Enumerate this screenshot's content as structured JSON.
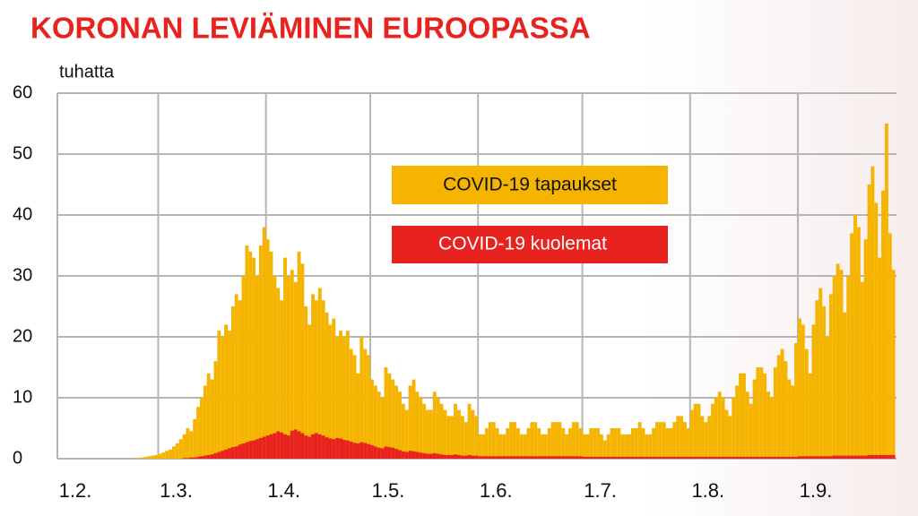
{
  "chart_data": {
    "type": "bar",
    "title": "KORONAN LEVIÄMINEN EUROOPASSA",
    "y_label": "tuhatta",
    "categories": [
      "1.2.",
      null,
      null,
      null,
      null,
      null,
      null,
      null,
      null,
      null,
      null,
      null,
      null,
      null,
      null,
      null,
      null,
      null,
      null,
      null,
      null,
      null,
      null,
      null,
      null,
      null,
      null,
      null,
      null,
      "1.3.",
      null,
      null,
      null,
      null,
      null,
      null,
      null,
      null,
      null,
      null,
      null,
      null,
      null,
      null,
      null,
      null,
      null,
      null,
      null,
      null,
      null,
      null,
      null,
      null,
      null,
      null,
      null,
      null,
      null,
      null,
      "1.4.",
      null,
      null,
      null,
      null,
      null,
      null,
      null,
      null,
      null,
      null,
      null,
      null,
      null,
      null,
      null,
      null,
      null,
      null,
      null,
      null,
      null,
      null,
      null,
      null,
      null,
      null,
      null,
      null,
      null,
      "1.5.",
      null,
      null,
      null,
      null,
      null,
      null,
      null,
      null,
      null,
      null,
      null,
      null,
      null,
      null,
      null,
      null,
      null,
      null,
      null,
      null,
      null,
      null,
      null,
      null,
      null,
      null,
      null,
      null,
      null,
      null,
      "1.6.",
      null,
      null,
      null,
      null,
      null,
      null,
      null,
      null,
      null,
      null,
      null,
      null,
      null,
      null,
      null,
      null,
      null,
      null,
      null,
      null,
      null,
      null,
      null,
      null,
      null,
      null,
      null,
      null,
      null,
      "1.7.",
      null,
      null,
      null,
      null,
      null,
      null,
      null,
      null,
      null,
      null,
      null,
      null,
      null,
      null,
      null,
      null,
      null,
      null,
      null,
      null,
      null,
      null,
      null,
      null,
      null,
      null,
      null,
      null,
      null,
      null,
      "1.8.",
      null,
      null,
      null,
      null,
      null,
      null,
      null,
      null,
      null,
      null,
      null,
      null,
      null,
      null,
      null,
      null,
      null,
      null,
      null,
      null,
      null,
      null,
      null,
      null,
      null,
      null,
      null,
      null,
      null,
      null,
      "1.9.",
      null,
      null,
      null,
      null,
      null,
      null,
      null,
      null,
      null,
      null,
      null,
      null,
      null,
      null,
      null,
      null,
      null,
      null,
      null,
      null,
      null,
      null,
      null,
      null,
      null,
      null,
      null
    ],
    "series": [
      {
        "name": "COVID-19 tapaukset",
        "color": "#f5b400",
        "values": [
          0,
          0,
          0,
          0,
          0,
          0,
          0,
          0,
          0,
          0,
          0,
          0,
          0,
          0,
          0,
          0,
          0,
          0,
          0,
          0,
          0,
          0,
          0.1,
          0.1,
          0.2,
          0.3,
          0.4,
          0.5,
          0.6,
          0.8,
          1.0,
          1.3,
          1.5,
          2.0,
          2.5,
          3.2,
          4.0,
          5.0,
          4.5,
          6.5,
          8.5,
          10,
          12,
          14,
          13,
          16,
          21,
          20,
          22,
          21,
          25,
          27,
          26,
          30,
          35,
          34,
          33,
          30,
          35,
          38,
          36,
          34,
          30,
          28,
          26,
          33,
          30,
          31,
          29,
          34,
          32,
          25,
          22,
          27,
          26,
          28,
          26,
          24,
          22,
          23,
          20,
          21,
          20,
          21,
          18,
          17,
          14,
          20,
          18,
          17,
          13,
          12,
          11,
          10,
          15,
          14,
          13,
          12,
          11,
          9,
          8,
          12,
          13,
          11,
          10,
          9,
          8,
          8,
          11,
          10,
          9,
          8,
          7,
          7,
          9,
          8,
          7,
          6,
          9,
          8,
          7,
          4,
          4,
          5,
          6,
          6,
          5,
          4,
          4,
          5,
          6,
          6,
          5,
          4,
          4,
          5,
          6,
          6,
          5,
          4,
          4,
          5,
          6,
          6,
          6,
          5,
          4,
          5,
          6,
          6,
          5,
          4,
          4,
          5,
          5,
          5,
          4,
          3,
          4,
          5,
          5,
          5,
          4,
          4,
          4,
          5,
          5,
          6,
          5,
          4,
          4,
          5,
          6,
          6,
          6,
          5,
          5,
          6,
          7,
          7,
          6,
          5,
          8,
          9,
          9,
          7,
          6,
          7,
          9,
          10,
          11,
          10,
          8,
          7,
          10,
          12,
          14,
          14,
          11,
          9,
          13,
          15,
          15,
          14,
          11,
          10,
          15,
          17,
          18,
          16,
          13,
          12,
          19,
          23,
          22,
          18,
          14,
          22,
          26,
          28,
          25,
          20,
          27,
          30,
          32,
          31,
          24,
          30,
          37,
          40,
          38,
          29,
          36,
          45,
          48,
          42,
          33,
          44,
          55,
          37,
          31
        ]
      },
      {
        "name": "COVID-19 kuolemat",
        "color": "#e8231f",
        "values": [
          0,
          0,
          0,
          0,
          0,
          0,
          0,
          0,
          0,
          0,
          0,
          0,
          0,
          0,
          0,
          0,
          0,
          0,
          0,
          0,
          0,
          0,
          0,
          0,
          0,
          0,
          0,
          0,
          0,
          0,
          0,
          0,
          0,
          0,
          0,
          0,
          0.1,
          0.1,
          0.2,
          0.2,
          0.3,
          0.4,
          0.5,
          0.6,
          0.7,
          0.9,
          1.1,
          1.3,
          1.5,
          1.7,
          1.9,
          2.0,
          2.3,
          2.5,
          2.7,
          2.9,
          3.0,
          3.2,
          3.4,
          3.6,
          3.8,
          4.0,
          4.2,
          4.5,
          4.3,
          4.0,
          3.8,
          4.6,
          4.8,
          4.5,
          4.2,
          3.8,
          3.6,
          4.0,
          4.2,
          4.0,
          3.8,
          3.5,
          3.3,
          3.2,
          3.4,
          3.3,
          3.1,
          3.0,
          2.8,
          2.6,
          2.5,
          2.7,
          2.6,
          2.4,
          2.2,
          2.0,
          1.8,
          1.7,
          2.0,
          1.9,
          1.8,
          1.6,
          1.4,
          1.2,
          1.1,
          1.3,
          1.2,
          1.1,
          1.0,
          0.9,
          0.8,
          0.8,
          0.9,
          0.8,
          0.7,
          0.6,
          0.6,
          0.6,
          0.7,
          0.6,
          0.5,
          0.5,
          0.6,
          0.5,
          0.5,
          0.4,
          0.4,
          0.4,
          0.4,
          0.4,
          0.4,
          0.4,
          0.4,
          0.4,
          0.4,
          0.4,
          0.4,
          0.4,
          0.4,
          0.4,
          0.4,
          0.4,
          0.4,
          0.4,
          0.4,
          0.4,
          0.4,
          0.4,
          0.4,
          0.4,
          0.4,
          0.4,
          0.4,
          0.4,
          0.4,
          0.3,
          0.3,
          0.3,
          0.3,
          0.3,
          0.3,
          0.3,
          0.3,
          0.3,
          0.3,
          0.3,
          0.3,
          0.3,
          0.3,
          0.3,
          0.3,
          0.3,
          0.3,
          0.3,
          0.3,
          0.3,
          0.3,
          0.3,
          0.3,
          0.3,
          0.3,
          0.3,
          0.3,
          0.3,
          0.3,
          0.3,
          0.3,
          0.3,
          0.3,
          0.3,
          0.3,
          0.3,
          0.3,
          0.3,
          0.3,
          0.3,
          0.3,
          0.3,
          0.3,
          0.3,
          0.3,
          0.3,
          0.3,
          0.3,
          0.3,
          0.3,
          0.3,
          0.3,
          0.3,
          0.3,
          0.3,
          0.3,
          0.3,
          0.3,
          0.3,
          0.3,
          0.3,
          0.4,
          0.4,
          0.4,
          0.4,
          0.4,
          0.4,
          0.4,
          0.4,
          0.4,
          0.4,
          0.5,
          0.5,
          0.5,
          0.5,
          0.5,
          0.5,
          0.5,
          0.5,
          0.5,
          0.5,
          0.6,
          0.6,
          0.6,
          0.6,
          0.6,
          0.6,
          0.6,
          0.6
        ]
      }
    ],
    "ylim": [
      0,
      60
    ],
    "yticks": [
      0,
      10,
      20,
      30,
      40,
      50,
      60
    ],
    "grid": true
  }
}
